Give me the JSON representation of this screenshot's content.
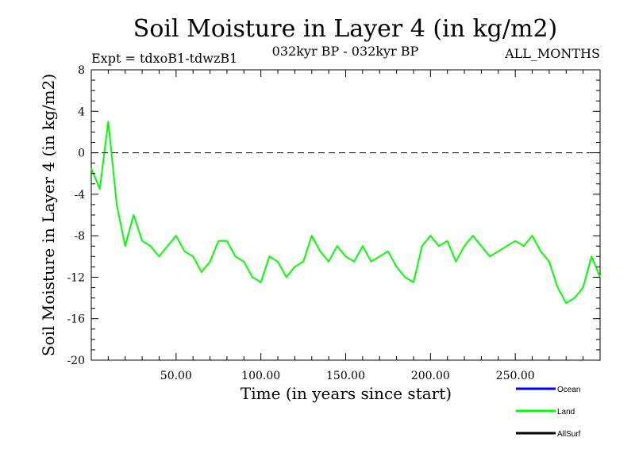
{
  "chart_data": {
    "type": "line",
    "title": "Soil Moisture in Layer 4 (in kg/m2)",
    "subtitle_left": "Expt = tdxoB1-tdwzB1",
    "subtitle_center": "032kyr BP - 032kyr BP",
    "subtitle_right": "ALL_MONTHS",
    "xlabel": "Time (in years since start)",
    "ylabel": "Soil Moisture in Layer 4 (in kg/m2)",
    "xlim": [
      0,
      300
    ],
    "ylim": [
      -20,
      8
    ],
    "x_ticks": [
      50,
      100,
      150,
      200,
      250
    ],
    "x_tick_labels": [
      "50.00",
      "100.00",
      "150.00",
      "200.00",
      "250.00"
    ],
    "y_ticks": [
      8,
      4,
      0,
      -4,
      -8,
      -12,
      -16,
      -20
    ],
    "y_tick_labels": [
      "8",
      "4",
      "0",
      "-4",
      "-8",
      "-12",
      "-16",
      "-20"
    ],
    "reference_line": 0,
    "legend": [
      {
        "name": "Ocean",
        "color": "#0000ff"
      },
      {
        "name": "Land",
        "color": "#00ff00"
      },
      {
        "name": "AllSurf",
        "color": "#000000"
      }
    ],
    "series": [
      {
        "name": "Land",
        "color": "#00ff00",
        "x": [
          0,
          5,
          10,
          15,
          20,
          25,
          30,
          35,
          40,
          45,
          50,
          55,
          60,
          65,
          70,
          75,
          80,
          85,
          90,
          95,
          100,
          105,
          110,
          115,
          120,
          125,
          130,
          135,
          140,
          145,
          150,
          155,
          160,
          165,
          170,
          175,
          180,
          185,
          190,
          195,
          200,
          205,
          210,
          215,
          220,
          225,
          230,
          235,
          240,
          245,
          250,
          255,
          260,
          265,
          270,
          275,
          280,
          285,
          290,
          295,
          300
        ],
        "values": [
          -1.5,
          -3.5,
          3.0,
          -5.0,
          -9.0,
          -6.0,
          -8.5,
          -9.0,
          -10.0,
          -9.0,
          -8.0,
          -9.5,
          -10.0,
          -11.5,
          -10.5,
          -8.5,
          -8.5,
          -10.0,
          -10.5,
          -12.0,
          -12.5,
          -10.0,
          -10.5,
          -12.0,
          -11.0,
          -10.5,
          -8.0,
          -9.5,
          -10.5,
          -9.0,
          -10.0,
          -10.5,
          -9.0,
          -10.5,
          -10.0,
          -9.5,
          -11.0,
          -12.0,
          -12.5,
          -9.0,
          -8.0,
          -9.0,
          -8.5,
          -10.5,
          -9.0,
          -8.0,
          -9.0,
          -10.0,
          -9.5,
          -9.0,
          -8.5,
          -9.0,
          -8.0,
          -9.5,
          -10.5,
          -13.0,
          -14.5,
          -14.0,
          -13.0,
          -10.0,
          -12.0
        ]
      }
    ]
  }
}
